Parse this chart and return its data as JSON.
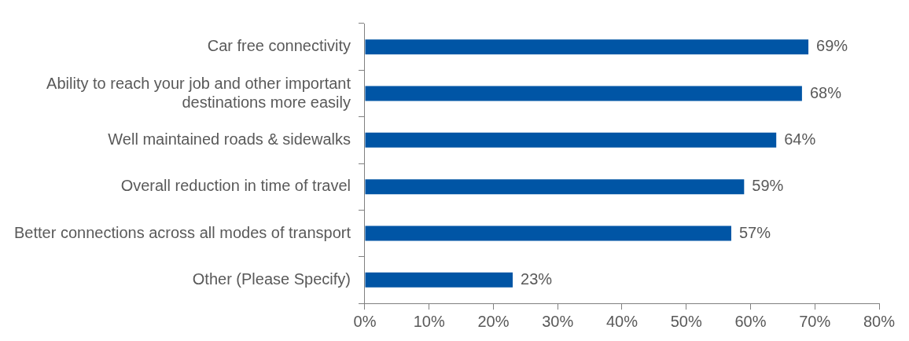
{
  "chart_data": {
    "type": "bar",
    "orientation": "horizontal",
    "categories": [
      "Car free connectivity",
      "Ability to reach your job and other important destinations more easily",
      "Well maintained roads & sidewalks",
      "Overall reduction in time of travel",
      "Better connections across all modes of transport",
      "Other (Please Specify)"
    ],
    "values": [
      69,
      68,
      64,
      59,
      57,
      23
    ],
    "value_labels": [
      "69%",
      "68%",
      "64%",
      "59%",
      "57%",
      "23%"
    ],
    "color": "#0055a5",
    "xlim": [
      0,
      80
    ],
    "xticks": [
      {
        "value": 0,
        "label": "0%"
      },
      {
        "value": 10,
        "label": "10%"
      },
      {
        "value": 20,
        "label": "20%"
      },
      {
        "value": 30,
        "label": "30%"
      },
      {
        "value": 40,
        "label": "40%"
      },
      {
        "value": 50,
        "label": "50%"
      },
      {
        "value": 60,
        "label": "60%"
      },
      {
        "value": 70,
        "label": "70%"
      },
      {
        "value": 80,
        "label": "80%"
      }
    ],
    "grid": false,
    "legend": false
  }
}
